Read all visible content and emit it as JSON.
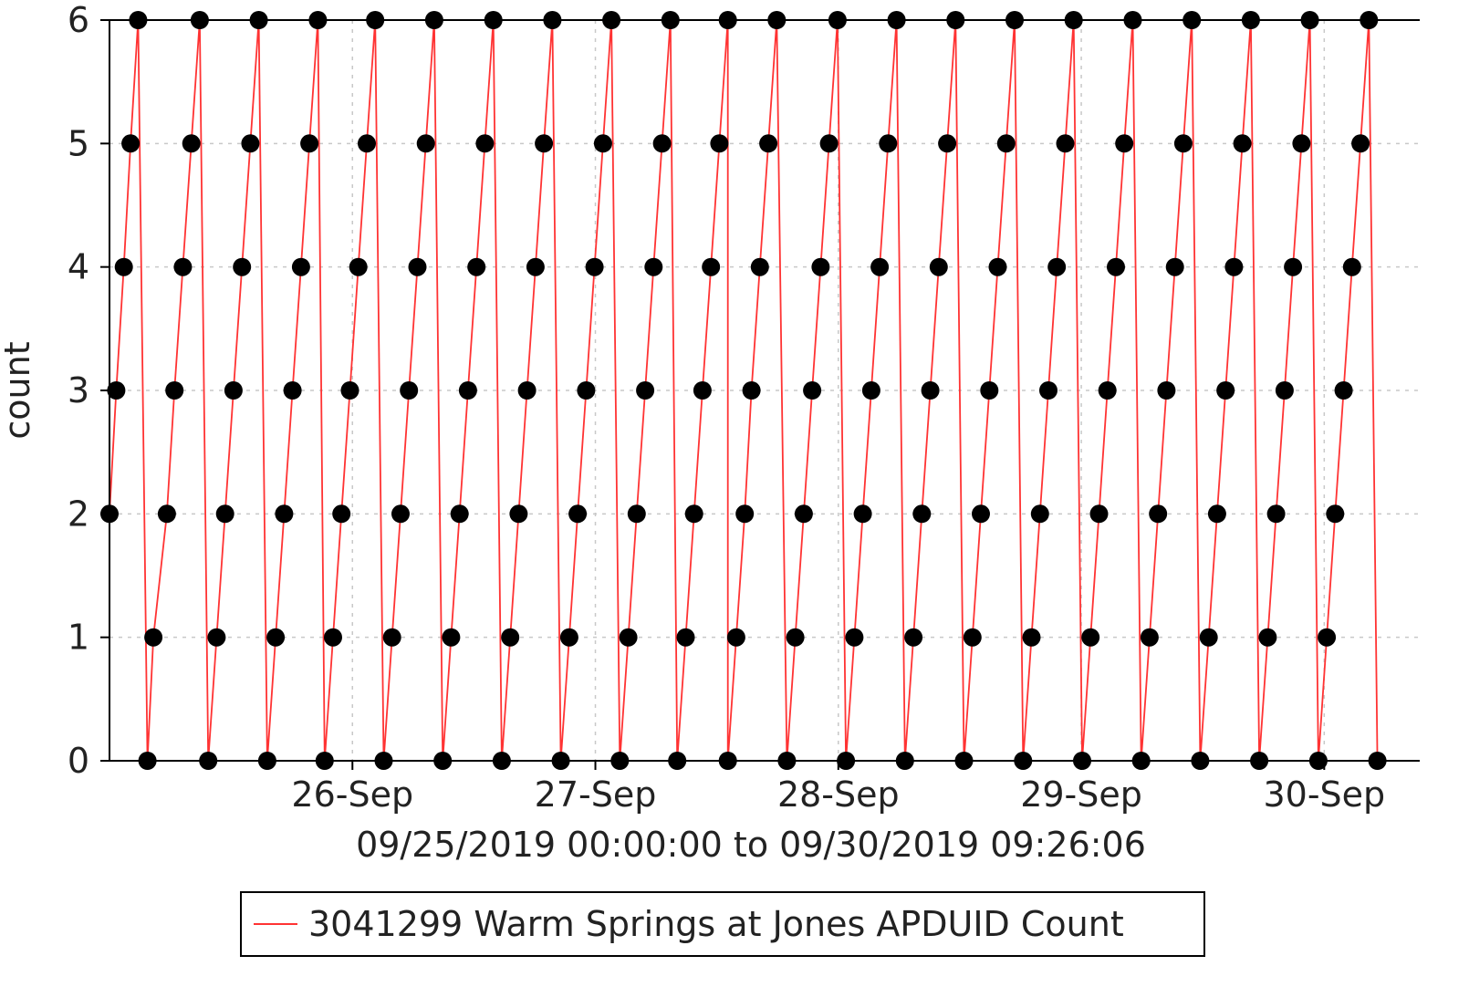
{
  "chart_data": {
    "type": "line",
    "title": "",
    "xlabel": "09/25/2019 00:00:00 to 09/30/2019 09:26:06",
    "ylabel": "count",
    "x_range": [
      "2019-09-25T00:00:00",
      "2019-09-30T09:26:06"
    ],
    "ylim": [
      0,
      6
    ],
    "yticks": [
      0,
      1,
      2,
      3,
      4,
      5,
      6
    ],
    "xticks": [
      {
        "label": "26-Sep",
        "value": "2019-09-26T00:00:00"
      },
      {
        "label": "27-Sep",
        "value": "2019-09-27T00:00:00"
      },
      {
        "label": "28-Sep",
        "value": "2019-09-28T00:00:00"
      },
      {
        "label": "29-Sep",
        "value": "2019-09-29T00:00:00"
      },
      {
        "label": "30-Sep",
        "value": "2019-09-30T00:00:00"
      }
    ],
    "grid": true,
    "legend_position": "bottom",
    "series": [
      {
        "name": "3041299 Warm Springs at Jones APDUID Count",
        "color": "#ff3333",
        "marker_color": "#000000",
        "points": [
          [
            "2019-09-25T00:00",
            2
          ],
          [
            "2019-09-25T00:40",
            3
          ],
          [
            "2019-09-25T01:25",
            4
          ],
          [
            "2019-09-25T02:05",
            5
          ],
          [
            "2019-09-25T02:50",
            6
          ],
          [
            "2019-09-25T03:45",
            0
          ],
          [
            "2019-09-25T04:20",
            1
          ],
          [
            "2019-09-25T05:40",
            2
          ],
          [
            "2019-09-25T06:25",
            3
          ],
          [
            "2019-09-25T07:15",
            4
          ],
          [
            "2019-09-25T08:05",
            5
          ],
          [
            "2019-09-25T08:55",
            6
          ],
          [
            "2019-09-25T09:45",
            0
          ],
          [
            "2019-09-25T10:35",
            1
          ],
          [
            "2019-09-25T11:25",
            2
          ],
          [
            "2019-09-25T12:15",
            3
          ],
          [
            "2019-09-25T13:05",
            4
          ],
          [
            "2019-09-25T13:55",
            5
          ],
          [
            "2019-09-25T14:45",
            6
          ],
          [
            "2019-09-25T15:35",
            0
          ],
          [
            "2019-09-25T16:25",
            1
          ],
          [
            "2019-09-25T17:15",
            2
          ],
          [
            "2019-09-25T18:05",
            3
          ],
          [
            "2019-09-25T18:55",
            4
          ],
          [
            "2019-09-25T19:45",
            5
          ],
          [
            "2019-09-25T20:35",
            6
          ],
          [
            "2019-09-25T21:15",
            0
          ],
          [
            "2019-09-25T22:05",
            1
          ],
          [
            "2019-09-25T22:55",
            2
          ],
          [
            "2019-09-25T23:45",
            3
          ],
          [
            "2019-09-26T00:35",
            4
          ],
          [
            "2019-09-26T01:25",
            5
          ],
          [
            "2019-09-26T02:15",
            6
          ],
          [
            "2019-09-26T03:05",
            0
          ],
          [
            "2019-09-26T03:55",
            1
          ],
          [
            "2019-09-26T04:45",
            2
          ],
          [
            "2019-09-26T05:35",
            3
          ],
          [
            "2019-09-26T06:25",
            4
          ],
          [
            "2019-09-26T07:15",
            5
          ],
          [
            "2019-09-26T08:05",
            6
          ],
          [
            "2019-09-26T08:55",
            0
          ],
          [
            "2019-09-26T09:45",
            1
          ],
          [
            "2019-09-26T10:35",
            2
          ],
          [
            "2019-09-26T11:25",
            3
          ],
          [
            "2019-09-26T12:15",
            4
          ],
          [
            "2019-09-26T13:05",
            5
          ],
          [
            "2019-09-26T13:55",
            6
          ],
          [
            "2019-09-26T14:45",
            0
          ],
          [
            "2019-09-26T15:35",
            1
          ],
          [
            "2019-09-26T16:25",
            2
          ],
          [
            "2019-09-26T17:15",
            3
          ],
          [
            "2019-09-26T18:05",
            4
          ],
          [
            "2019-09-26T18:55",
            5
          ],
          [
            "2019-09-26T19:45",
            6
          ],
          [
            "2019-09-26T20:35",
            0
          ],
          [
            "2019-09-26T21:25",
            1
          ],
          [
            "2019-09-26T22:15",
            2
          ],
          [
            "2019-09-26T23:05",
            3
          ],
          [
            "2019-09-26T23:55",
            4
          ],
          [
            "2019-09-27T00:45",
            5
          ],
          [
            "2019-09-27T01:35",
            6
          ],
          [
            "2019-09-27T02:25",
            0
          ],
          [
            "2019-09-27T03:15",
            1
          ],
          [
            "2019-09-27T04:05",
            2
          ],
          [
            "2019-09-27T04:55",
            3
          ],
          [
            "2019-09-27T05:45",
            4
          ],
          [
            "2019-09-27T06:35",
            5
          ],
          [
            "2019-09-27T07:25",
            6
          ],
          [
            "2019-09-27T08:05",
            0
          ],
          [
            "2019-09-27T08:55",
            1
          ],
          [
            "2019-09-27T09:45",
            2
          ],
          [
            "2019-09-27T10:35",
            3
          ],
          [
            "2019-09-27T11:25",
            4
          ],
          [
            "2019-09-27T12:15",
            5
          ],
          [
            "2019-09-27T13:05",
            6
          ],
          [
            "2019-09-27T13:05",
            0
          ],
          [
            "2019-09-27T13:55",
            1
          ],
          [
            "2019-09-27T14:45",
            2
          ],
          [
            "2019-09-27T15:25",
            3
          ],
          [
            "2019-09-27T16:15",
            4
          ],
          [
            "2019-09-27T17:05",
            5
          ],
          [
            "2019-09-27T17:55",
            6
          ],
          [
            "2019-09-27T18:55",
            0
          ],
          [
            "2019-09-27T19:45",
            1
          ],
          [
            "2019-09-27T20:35",
            2
          ],
          [
            "2019-09-27T21:25",
            3
          ],
          [
            "2019-09-27T22:15",
            4
          ],
          [
            "2019-09-27T23:05",
            5
          ],
          [
            "2019-09-27T23:55",
            6
          ],
          [
            "2019-09-28T00:45",
            0
          ],
          [
            "2019-09-28T01:35",
            1
          ],
          [
            "2019-09-28T02:25",
            2
          ],
          [
            "2019-09-28T03:15",
            3
          ],
          [
            "2019-09-28T04:05",
            4
          ],
          [
            "2019-09-28T04:55",
            5
          ],
          [
            "2019-09-28T05:45",
            6
          ],
          [
            "2019-09-28T06:35",
            0
          ],
          [
            "2019-09-28T07:25",
            1
          ],
          [
            "2019-09-28T08:15",
            2
          ],
          [
            "2019-09-28T09:05",
            3
          ],
          [
            "2019-09-28T09:55",
            4
          ],
          [
            "2019-09-28T10:45",
            5
          ],
          [
            "2019-09-28T11:35",
            6
          ],
          [
            "2019-09-28T12:25",
            0
          ],
          [
            "2019-09-28T13:15",
            1
          ],
          [
            "2019-09-28T14:05",
            2
          ],
          [
            "2019-09-28T14:55",
            3
          ],
          [
            "2019-09-28T15:45",
            4
          ],
          [
            "2019-09-28T16:35",
            5
          ],
          [
            "2019-09-28T17:25",
            6
          ],
          [
            "2019-09-28T18:15",
            0
          ],
          [
            "2019-09-28T19:05",
            1
          ],
          [
            "2019-09-28T19:55",
            2
          ],
          [
            "2019-09-28T20:45",
            3
          ],
          [
            "2019-09-28T21:35",
            4
          ],
          [
            "2019-09-28T22:25",
            5
          ],
          [
            "2019-09-28T23:15",
            6
          ],
          [
            "2019-09-29T00:05",
            0
          ],
          [
            "2019-09-29T00:55",
            1
          ],
          [
            "2019-09-29T01:45",
            2
          ],
          [
            "2019-09-29T02:35",
            3
          ],
          [
            "2019-09-29T03:25",
            4
          ],
          [
            "2019-09-29T04:15",
            5
          ],
          [
            "2019-09-29T05:05",
            6
          ],
          [
            "2019-09-29T05:55",
            0
          ],
          [
            "2019-09-29T06:45",
            1
          ],
          [
            "2019-09-29T07:35",
            2
          ],
          [
            "2019-09-29T08:25",
            3
          ],
          [
            "2019-09-29T09:15",
            4
          ],
          [
            "2019-09-29T10:05",
            5
          ],
          [
            "2019-09-29T10:55",
            6
          ],
          [
            "2019-09-29T11:45",
            0
          ],
          [
            "2019-09-29T12:35",
            1
          ],
          [
            "2019-09-29T13:25",
            2
          ],
          [
            "2019-09-29T14:15",
            3
          ],
          [
            "2019-09-29T15:05",
            4
          ],
          [
            "2019-09-29T15:55",
            5
          ],
          [
            "2019-09-29T16:45",
            6
          ],
          [
            "2019-09-29T17:35",
            0
          ],
          [
            "2019-09-29T18:25",
            1
          ],
          [
            "2019-09-29T19:15",
            2
          ],
          [
            "2019-09-29T20:05",
            3
          ],
          [
            "2019-09-29T20:55",
            4
          ],
          [
            "2019-09-29T21:45",
            5
          ],
          [
            "2019-09-29T22:35",
            6
          ],
          [
            "2019-09-29T23:25",
            0
          ],
          [
            "2019-09-30T00:15",
            1
          ],
          [
            "2019-09-30T01:05",
            2
          ],
          [
            "2019-09-30T01:55",
            3
          ],
          [
            "2019-09-30T02:45",
            4
          ],
          [
            "2019-09-30T03:35",
            5
          ],
          [
            "2019-09-30T04:25",
            6
          ],
          [
            "2019-09-30T05:15",
            0
          ]
        ]
      }
    ]
  }
}
